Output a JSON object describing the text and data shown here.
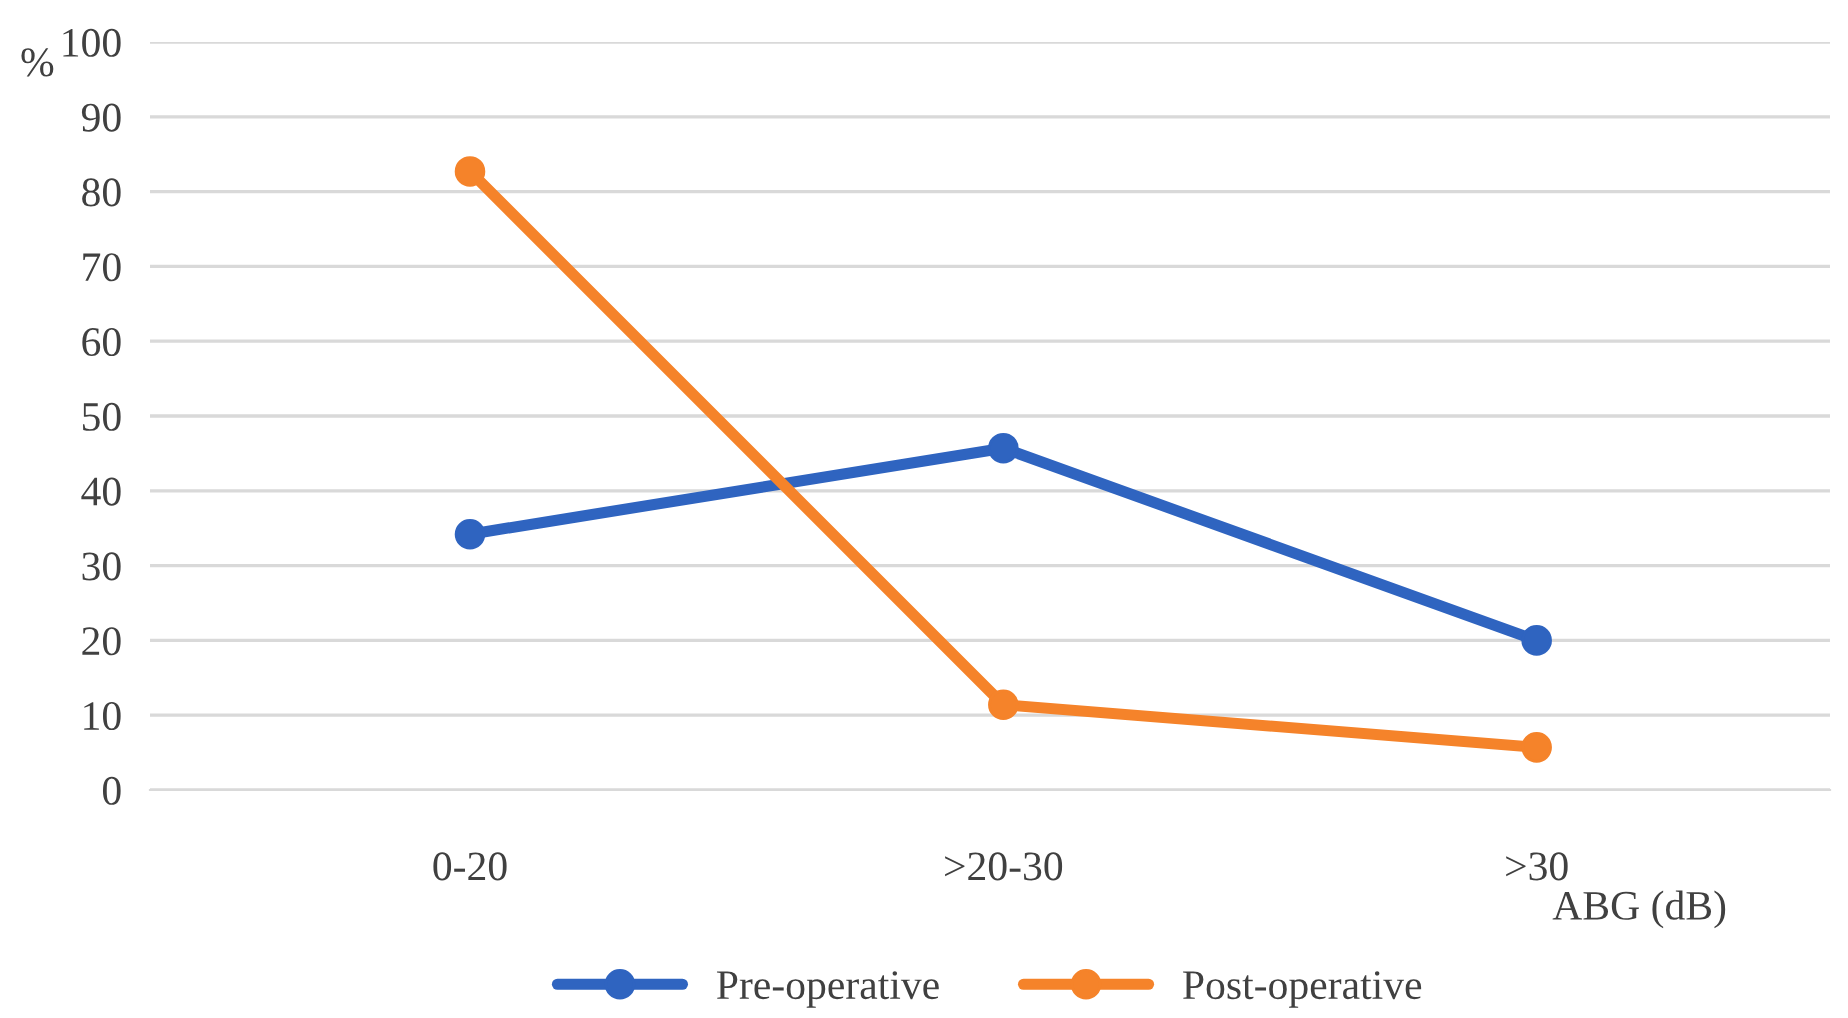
{
  "chart_data": {
    "type": "line",
    "xlabel": "ABG (dB)",
    "ylabel": "%",
    "categories": [
      "0-20",
      ">20-30",
      ">30"
    ],
    "series": [
      {
        "name": "Pre-operative",
        "color": "#2f64c0",
        "values": [
          34.2,
          45.7,
          20.0
        ]
      },
      {
        "name": "Post-operative",
        "color": "#f5832a",
        "values": [
          82.7,
          11.4,
          5.7
        ]
      }
    ],
    "ylim": [
      0,
      100
    ],
    "yticks": [
      0,
      10,
      20,
      30,
      40,
      50,
      60,
      70,
      80,
      90,
      100
    ],
    "grid": "y",
    "legend": "bottom",
    "marker": "circle",
    "line_style": "solid"
  }
}
